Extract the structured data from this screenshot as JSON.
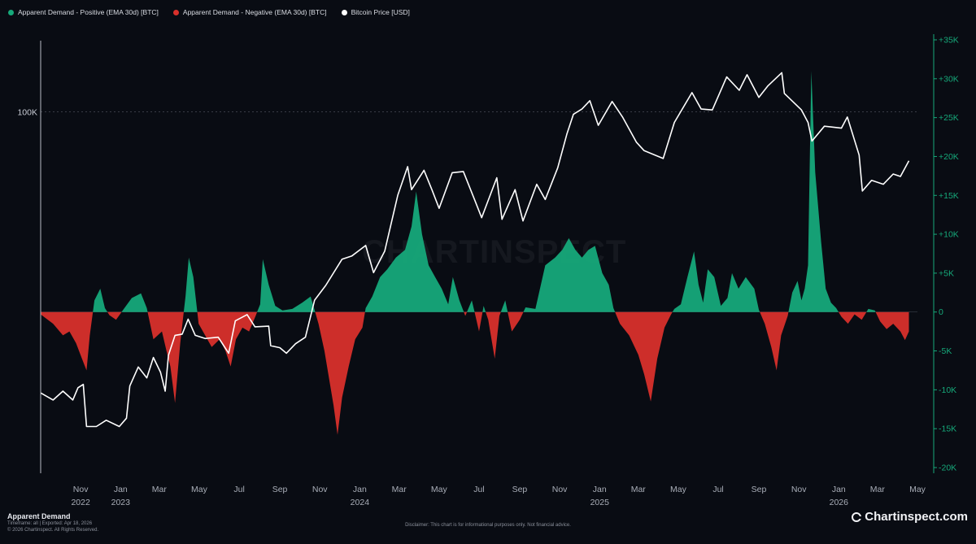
{
  "legend": [
    {
      "label": "Apparent Demand - Positive (EMA 30d) [BTC]",
      "color": "#16a97a"
    },
    {
      "label": "Apparent Demand - Negative (EMA 30d) [BTC]",
      "color": "#d8302b"
    },
    {
      "label": "Bitcoin Price [USD]",
      "color": "#ffffff"
    }
  ],
  "watermark": "CHARTINSPECT",
  "footer": {
    "title": "Apparent Demand",
    "timeframe": "Timeframe: all | Exported: Apr 18, 2026",
    "copyright": "© 2026 Chartinspect. All Rights Reserved.",
    "disclaimer": "Disclaimer: This chart is for informational purposes only. Not financial advice.",
    "brand": "Chartinspect.com"
  },
  "chart_data": {
    "type": "area+line",
    "title": "Apparent Demand",
    "x_range": [
      "2022-09-01",
      "2026-05-01"
    ],
    "x_ticks": [
      {
        "date": "2022-11-01",
        "label": "Nov",
        "year": "2022"
      },
      {
        "date": "2023-01-01",
        "label": "Jan",
        "year": "2023"
      },
      {
        "date": "2023-03-01",
        "label": "Mar"
      },
      {
        "date": "2023-05-01",
        "label": "May"
      },
      {
        "date": "2023-07-01",
        "label": "Jul"
      },
      {
        "date": "2023-09-01",
        "label": "Sep"
      },
      {
        "date": "2023-11-01",
        "label": "Nov"
      },
      {
        "date": "2024-01-01",
        "label": "Jan",
        "year": "2024"
      },
      {
        "date": "2024-03-01",
        "label": "Mar"
      },
      {
        "date": "2024-05-01",
        "label": "May"
      },
      {
        "date": "2024-07-01",
        "label": "Jul"
      },
      {
        "date": "2024-09-01",
        "label": "Sep"
      },
      {
        "date": "2024-11-01",
        "label": "Nov"
      },
      {
        "date": "2025-01-01",
        "label": "Jan",
        "year": "2025"
      },
      {
        "date": "2025-03-01",
        "label": "Mar"
      },
      {
        "date": "2025-05-01",
        "label": "May"
      },
      {
        "date": "2025-07-01",
        "label": "Jul"
      },
      {
        "date": "2025-09-01",
        "label": "Sep"
      },
      {
        "date": "2025-11-01",
        "label": "Nov"
      },
      {
        "date": "2026-01-01",
        "label": "Jan",
        "year": "2026"
      },
      {
        "date": "2026-03-01",
        "label": "Mar"
      },
      {
        "date": "2026-05-01",
        "label": "May"
      }
    ],
    "y_left": {
      "scale": "log",
      "range": [
        15000,
        140000
      ],
      "ticks": [
        {
          "value": 100000,
          "label": "100K"
        }
      ]
    },
    "y_right": {
      "scale": "linear",
      "range": [
        -20000,
        35000
      ],
      "ticks": [
        {
          "value": 35000,
          "label": "+35K"
        },
        {
          "value": 30000,
          "label": "+30K"
        },
        {
          "value": 25000,
          "label": "+25K"
        },
        {
          "value": 20000,
          "label": "+20K"
        },
        {
          "value": 15000,
          "label": "+15K"
        },
        {
          "value": 10000,
          "label": "+10K"
        },
        {
          "value": 5000,
          "label": "+5K"
        },
        {
          "value": 0,
          "label": "0"
        },
        {
          "value": -5000,
          "label": "-5K"
        },
        {
          "value": -10000,
          "label": "-10K"
        },
        {
          "value": -15000,
          "label": "-15K"
        },
        {
          "value": -20000,
          "label": "-20K"
        }
      ]
    },
    "demand_series": {
      "name": "Apparent Demand (EMA 30d) [BTC]",
      "points": [
        [
          "2022-09-01",
          -300
        ],
        [
          "2022-09-20",
          -1500
        ],
        [
          "2022-10-05",
          -3000
        ],
        [
          "2022-10-15",
          -2500
        ],
        [
          "2022-10-25",
          -4000
        ],
        [
          "2022-11-03",
          -6000
        ],
        [
          "2022-11-10",
          -7500
        ],
        [
          "2022-11-15",
          -3000
        ],
        [
          "2022-11-22",
          1500
        ],
        [
          "2022-12-01",
          3000
        ],
        [
          "2022-12-08",
          500
        ],
        [
          "2022-12-15",
          -400
        ],
        [
          "2022-12-25",
          -1000
        ],
        [
          "2023-01-05",
          300
        ],
        [
          "2023-01-18",
          1800
        ],
        [
          "2023-02-01",
          2400
        ],
        [
          "2023-02-10",
          500
        ],
        [
          "2023-02-20",
          -3500
        ],
        [
          "2023-03-05",
          -2500
        ],
        [
          "2023-03-12",
          -5000
        ],
        [
          "2023-03-18",
          -7000
        ],
        [
          "2023-03-25",
          -11700
        ],
        [
          "2023-04-02",
          -4000
        ],
        [
          "2023-04-10",
          2000
        ],
        [
          "2023-04-15",
          7000
        ],
        [
          "2023-04-22",
          4500
        ],
        [
          "2023-04-30",
          -1500
        ],
        [
          "2023-05-10",
          -3000
        ],
        [
          "2023-05-20",
          -4500
        ],
        [
          "2023-06-01",
          -3500
        ],
        [
          "2023-06-10",
          -5000
        ],
        [
          "2023-06-18",
          -7000
        ],
        [
          "2023-06-26",
          -3500
        ],
        [
          "2023-07-06",
          -2000
        ],
        [
          "2023-07-16",
          -2500
        ],
        [
          "2023-07-26",
          -500
        ],
        [
          "2023-08-02",
          1000
        ],
        [
          "2023-08-06",
          6800
        ],
        [
          "2023-08-15",
          3500
        ],
        [
          "2023-08-25",
          800
        ],
        [
          "2023-09-05",
          200
        ],
        [
          "2023-09-20",
          400
        ],
        [
          "2023-10-05",
          1200
        ],
        [
          "2023-10-18",
          2000
        ],
        [
          "2023-10-30",
          -1500
        ],
        [
          "2023-11-08",
          -5000
        ],
        [
          "2023-11-15",
          -8500
        ],
        [
          "2023-11-22",
          -12000
        ],
        [
          "2023-11-28",
          -15800
        ],
        [
          "2023-12-05",
          -11000
        ],
        [
          "2023-12-15",
          -7000
        ],
        [
          "2023-12-25",
          -3500
        ],
        [
          "2024-01-05",
          -2000
        ],
        [
          "2024-01-10",
          500
        ],
        [
          "2024-01-20",
          2000
        ],
        [
          "2024-02-01",
          4500
        ],
        [
          "2024-02-12",
          5500
        ],
        [
          "2024-02-25",
          7000
        ],
        [
          "2024-03-10",
          8000
        ],
        [
          "2024-03-20",
          11000
        ],
        [
          "2024-03-27",
          15500
        ],
        [
          "2024-04-05",
          10000
        ],
        [
          "2024-04-15",
          6000
        ],
        [
          "2024-04-25",
          4500
        ],
        [
          "2024-05-05",
          3000
        ],
        [
          "2024-05-15",
          1000
        ],
        [
          "2024-05-22",
          4500
        ],
        [
          "2024-06-01",
          1500
        ],
        [
          "2024-06-10",
          -500
        ],
        [
          "2024-06-20",
          1500
        ],
        [
          "2024-07-01",
          -2500
        ],
        [
          "2024-07-08",
          800
        ],
        [
          "2024-07-15",
          -1000
        ],
        [
          "2024-07-25",
          -6000
        ],
        [
          "2024-08-01",
          -500
        ],
        [
          "2024-08-10",
          1500
        ],
        [
          "2024-08-20",
          -2500
        ],
        [
          "2024-09-01",
          -1000
        ],
        [
          "2024-09-10",
          600
        ],
        [
          "2024-09-25",
          400
        ],
        [
          "2024-10-10",
          6000
        ],
        [
          "2024-10-25",
          7000
        ],
        [
          "2024-11-05",
          8000
        ],
        [
          "2024-11-15",
          9500
        ],
        [
          "2024-11-25",
          8000
        ],
        [
          "2024-12-05",
          7000
        ],
        [
          "2024-12-15",
          8000
        ],
        [
          "2024-12-25",
          8500
        ],
        [
          "2025-01-05",
          5000
        ],
        [
          "2025-01-15",
          3500
        ],
        [
          "2025-01-22",
          500
        ],
        [
          "2025-02-01",
          -1500
        ],
        [
          "2025-02-15",
          -3000
        ],
        [
          "2025-03-01",
          -5500
        ],
        [
          "2025-03-10",
          -8000
        ],
        [
          "2025-03-20",
          -11500
        ],
        [
          "2025-03-30",
          -6000
        ],
        [
          "2025-04-10",
          -2000
        ],
        [
          "2025-04-20",
          -300
        ],
        [
          "2025-04-25",
          400
        ],
        [
          "2025-05-05",
          1000
        ],
        [
          "2025-05-15",
          4500
        ],
        [
          "2025-05-25",
          7800
        ],
        [
          "2025-06-01",
          3500
        ],
        [
          "2025-06-08",
          1200
        ],
        [
          "2025-06-15",
          5500
        ],
        [
          "2025-06-25",
          4500
        ],
        [
          "2025-07-05",
          800
        ],
        [
          "2025-07-15",
          1800
        ],
        [
          "2025-07-22",
          5000
        ],
        [
          "2025-08-01",
          3000
        ],
        [
          "2025-08-12",
          4500
        ],
        [
          "2025-08-25",
          3000
        ],
        [
          "2025-09-01",
          300
        ],
        [
          "2025-09-10",
          -1500
        ],
        [
          "2025-09-20",
          -4500
        ],
        [
          "2025-09-28",
          -7500
        ],
        [
          "2025-10-05",
          -3000
        ],
        [
          "2025-10-15",
          -500
        ],
        [
          "2025-10-22",
          2500
        ],
        [
          "2025-10-30",
          4000
        ],
        [
          "2025-11-05",
          1500
        ],
        [
          "2025-11-10",
          3000
        ],
        [
          "2025-11-15",
          6000
        ],
        [
          "2025-11-20",
          31000
        ],
        [
          "2025-11-26",
          18000
        ],
        [
          "2025-12-05",
          9000
        ],
        [
          "2025-12-12",
          3000
        ],
        [
          "2025-12-20",
          1200
        ],
        [
          "2025-12-28",
          500
        ],
        [
          "2026-01-05",
          -600
        ],
        [
          "2026-01-15",
          -1500
        ],
        [
          "2026-01-25",
          -300
        ],
        [
          "2026-02-05",
          -1000
        ],
        [
          "2026-02-15",
          400
        ],
        [
          "2026-02-25",
          200
        ],
        [
          "2026-03-05",
          -1200
        ],
        [
          "2026-03-15",
          -2200
        ],
        [
          "2026-03-25",
          -1500
        ],
        [
          "2026-04-05",
          -2500
        ],
        [
          "2026-04-12",
          -3600
        ],
        [
          "2026-04-18",
          -2500
        ]
      ]
    },
    "price_series": {
      "name": "Bitcoin Price [USD]",
      "points": [
        [
          "2022-09-01",
          20000
        ],
        [
          "2022-09-20",
          19200
        ],
        [
          "2022-10-05",
          20200
        ],
        [
          "2022-10-20",
          19200
        ],
        [
          "2022-10-28",
          20600
        ],
        [
          "2022-11-05",
          21000
        ],
        [
          "2022-11-10",
          16500
        ],
        [
          "2022-11-25",
          16500
        ],
        [
          "2022-12-10",
          17100
        ],
        [
          "2022-12-30",
          16500
        ],
        [
          "2023-01-10",
          17300
        ],
        [
          "2023-01-15",
          20800
        ],
        [
          "2023-01-28",
          23200
        ],
        [
          "2023-02-10",
          21800
        ],
        [
          "2023-02-20",
          24500
        ],
        [
          "2023-03-03",
          22500
        ],
        [
          "2023-03-10",
          20200
        ],
        [
          "2023-03-15",
          24800
        ],
        [
          "2023-03-25",
          27800
        ],
        [
          "2023-04-05",
          28000
        ],
        [
          "2023-04-14",
          30500
        ],
        [
          "2023-04-25",
          27800
        ],
        [
          "2023-05-10",
          27300
        ],
        [
          "2023-05-30",
          27500
        ],
        [
          "2023-06-15",
          25100
        ],
        [
          "2023-06-25",
          30200
        ],
        [
          "2023-07-13",
          31300
        ],
        [
          "2023-07-25",
          29200
        ],
        [
          "2023-08-15",
          29300
        ],
        [
          "2023-08-18",
          26200
        ],
        [
          "2023-09-01",
          25900
        ],
        [
          "2023-09-11",
          25100
        ],
        [
          "2023-09-25",
          26500
        ],
        [
          "2023-10-10",
          27500
        ],
        [
          "2023-10-24",
          34000
        ],
        [
          "2023-11-10",
          37000
        ],
        [
          "2023-12-05",
          43000
        ],
        [
          "2023-12-20",
          43800
        ],
        [
          "2024-01-10",
          46500
        ],
        [
          "2024-01-22",
          39800
        ],
        [
          "2024-02-08",
          45000
        ],
        [
          "2024-02-28",
          62000
        ],
        [
          "2024-03-14",
          73000
        ],
        [
          "2024-03-20",
          64000
        ],
        [
          "2024-04-08",
          71500
        ],
        [
          "2024-04-20",
          64000
        ],
        [
          "2024-05-01",
          57500
        ],
        [
          "2024-05-21",
          70500
        ],
        [
          "2024-06-07",
          71000
        ],
        [
          "2024-06-24",
          60500
        ],
        [
          "2024-07-05",
          54500
        ],
        [
          "2024-07-28",
          68500
        ],
        [
          "2024-08-05",
          54000
        ],
        [
          "2024-08-25",
          64000
        ],
        [
          "2024-09-06",
          53500
        ],
        [
          "2024-09-27",
          66000
        ],
        [
          "2024-10-10",
          60500
        ],
        [
          "2024-10-29",
          72500
        ],
        [
          "2024-11-12",
          88000
        ],
        [
          "2024-11-22",
          98500
        ],
        [
          "2024-12-05",
          101500
        ],
        [
          "2024-12-17",
          106500
        ],
        [
          "2024-12-30",
          92500
        ],
        [
          "2025-01-20",
          106000
        ],
        [
          "2025-02-05",
          97000
        ],
        [
          "2025-02-26",
          84000
        ],
        [
          "2025-03-10",
          80000
        ],
        [
          "2025-04-08",
          76500
        ],
        [
          "2025-04-25",
          94000
        ],
        [
          "2025-05-22",
          111500
        ],
        [
          "2025-06-05",
          101500
        ],
        [
          "2025-06-22",
          101000
        ],
        [
          "2025-07-14",
          122000
        ],
        [
          "2025-08-02",
          113000
        ],
        [
          "2025-08-14",
          123500
        ],
        [
          "2025-09-01",
          108500
        ],
        [
          "2025-09-15",
          116000
        ],
        [
          "2025-10-06",
          125000
        ],
        [
          "2025-10-10",
          111000
        ],
        [
          "2025-11-05",
          101000
        ],
        [
          "2025-11-15",
          94000
        ],
        [
          "2025-11-21",
          84500
        ],
        [
          "2025-12-10",
          92000
        ],
        [
          "2026-01-05",
          91000
        ],
        [
          "2026-01-14",
          97000
        ],
        [
          "2026-02-01",
          78000
        ],
        [
          "2026-02-06",
          63500
        ],
        [
          "2026-02-20",
          67500
        ],
        [
          "2026-03-10",
          66000
        ],
        [
          "2026-03-25",
          70000
        ],
        [
          "2026-04-05",
          69000
        ],
        [
          "2026-04-18",
          75500
        ]
      ]
    }
  }
}
